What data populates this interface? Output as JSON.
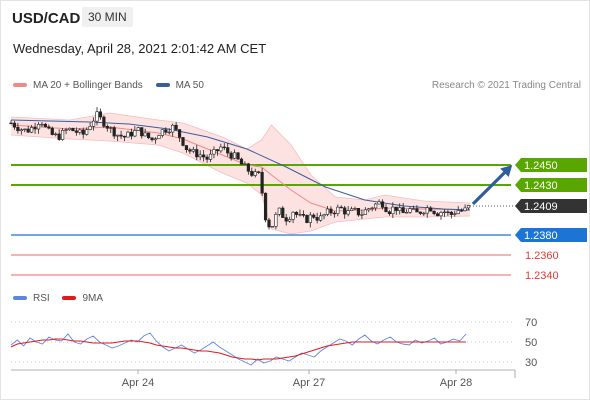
{
  "header": {
    "symbol": "USD/CAD",
    "timeframe": "30 MIN",
    "datetime": "Wednesday, April 28, 2021 2:01:42 AM CET"
  },
  "legend": {
    "ma_bollinger": "MA 20 + Bollinger Bands",
    "ma50": "MA 50",
    "rsi": "RSI",
    "ma9": "9MA"
  },
  "copyright": "Research © 2021 Trading Central",
  "colors": {
    "resistance": "#5aa600",
    "current": "#333333",
    "pivot": "#1c74d4",
    "support": "#e53935",
    "ma20": "#f08a8a",
    "ma50": "#3a5e9c",
    "bollinger_fill": "#fde2e2",
    "rsi": "#5b86e5",
    "ma9": "#e31a1c",
    "arrow": "#2e5d9e",
    "candle_up": "#ffffff",
    "candle_down": "#222222"
  },
  "icons": {
    "direction": "arrow-up-right-icon"
  },
  "chart_data": {
    "type": "candlestick",
    "instrument": "USD/CAD",
    "timeframe": "30 MIN",
    "ylim": [
      1.2325,
      1.2525
    ],
    "x_labels": [
      "Apr 24",
      "Apr 27",
      "Apr 28"
    ],
    "levels": [
      {
        "label": "1.2450",
        "value": 1.245,
        "kind": "resistance"
      },
      {
        "label": "1.2430",
        "value": 1.243,
        "kind": "resistance"
      },
      {
        "label": "1.2409",
        "value": 1.2409,
        "kind": "current"
      },
      {
        "label": "1.2380",
        "value": 1.238,
        "kind": "pivot"
      },
      {
        "label": "1.2360",
        "value": 1.236,
        "kind": "support"
      },
      {
        "label": "1.2340",
        "value": 1.234,
        "kind": "support"
      }
    ],
    "price_path": [
      [
        0,
        1.2492
      ],
      [
        8,
        1.2487
      ],
      [
        16,
        1.2484
      ],
      [
        24,
        1.2489
      ],
      [
        30,
        1.2496
      ],
      [
        36,
        1.2485
      ],
      [
        42,
        1.248
      ],
      [
        48,
        1.2478
      ],
      [
        53,
        1.2482
      ],
      [
        58,
        1.2486
      ],
      [
        65,
        1.2484
      ],
      [
        73,
        1.248
      ],
      [
        80,
        1.249
      ],
      [
        87,
        1.25
      ],
      [
        95,
        1.2492
      ],
      [
        102,
        1.2485
      ],
      [
        109,
        1.248
      ],
      [
        116,
        1.2478
      ],
      [
        123,
        1.2482
      ],
      [
        130,
        1.2485
      ],
      [
        137,
        1.2479
      ],
      [
        144,
        1.2475
      ],
      [
        151,
        1.2483
      ],
      [
        158,
        1.2486
      ],
      [
        165,
        1.2488
      ],
      [
        172,
        1.2478
      ],
      [
        179,
        1.2466
      ],
      [
        186,
        1.2462
      ],
      [
        193,
        1.246
      ],
      [
        200,
        1.2456
      ],
      [
        207,
        1.2462
      ],
      [
        214,
        1.2468
      ],
      [
        221,
        1.2462
      ],
      [
        228,
        1.2458
      ],
      [
        235,
        1.245
      ],
      [
        241,
        1.2445
      ],
      [
        247,
        1.244
      ],
      [
        252,
        1.244
      ],
      [
        256,
        1.242
      ],
      [
        258,
        1.24
      ],
      [
        261,
        1.2395
      ],
      [
        264,
        1.2385
      ],
      [
        268,
        1.2395
      ],
      [
        272,
        1.2405
      ],
      [
        276,
        1.24
      ],
      [
        281,
        1.2396
      ],
      [
        287,
        1.2404
      ],
      [
        293,
        1.2398
      ],
      [
        300,
        1.2395
      ],
      [
        307,
        1.24
      ],
      [
        314,
        1.2396
      ],
      [
        321,
        1.2402
      ],
      [
        328,
        1.2404
      ],
      [
        335,
        1.2407
      ],
      [
        342,
        1.2402
      ],
      [
        349,
        1.2404
      ],
      [
        356,
        1.2401
      ],
      [
        363,
        1.2406
      ],
      [
        370,
        1.241
      ],
      [
        377,
        1.2413
      ],
      [
        384,
        1.2404
      ],
      [
        391,
        1.2408
      ],
      [
        398,
        1.2401
      ],
      [
        405,
        1.2406
      ],
      [
        412,
        1.2401
      ],
      [
        419,
        1.2405
      ],
      [
        426,
        1.2408
      ],
      [
        433,
        1.2402
      ],
      [
        440,
        1.2404
      ],
      [
        447,
        1.24
      ],
      [
        454,
        1.2405
      ],
      [
        461,
        1.2404
      ],
      [
        467,
        1.2409
      ]
    ],
    "ma50_path": [
      [
        0,
        1.2495
      ],
      [
        40,
        1.2494
      ],
      [
        80,
        1.2493
      ],
      [
        120,
        1.2491
      ],
      [
        160,
        1.2486
      ],
      [
        200,
        1.2478
      ],
      [
        240,
        1.2466
      ],
      [
        280,
        1.2448
      ],
      [
        320,
        1.2428
      ],
      [
        360,
        1.2415
      ],
      [
        400,
        1.2409
      ],
      [
        440,
        1.2406
      ],
      [
        467,
        1.2405
      ]
    ],
    "bollinger_upper": [
      [
        0,
        1.2498
      ],
      [
        60,
        1.2495
      ],
      [
        100,
        1.2502
      ],
      [
        150,
        1.2495
      ],
      [
        175,
        1.2492
      ],
      [
        215,
        1.2478
      ],
      [
        240,
        1.2466
      ],
      [
        255,
        1.2475
      ],
      [
        265,
        1.249
      ],
      [
        285,
        1.247
      ],
      [
        305,
        1.244
      ],
      [
        330,
        1.2418
      ],
      [
        360,
        1.2415
      ],
      [
        380,
        1.242
      ],
      [
        420,
        1.2414
      ],
      [
        467,
        1.2412
      ]
    ],
    "bollinger_lower": [
      [
        0,
        1.248
      ],
      [
        60,
        1.2476
      ],
      [
        100,
        1.2474
      ],
      [
        150,
        1.247
      ],
      [
        175,
        1.2462
      ],
      [
        215,
        1.2442
      ],
      [
        240,
        1.2432
      ],
      [
        255,
        1.242
      ],
      [
        265,
        1.2386
      ],
      [
        285,
        1.2381
      ],
      [
        305,
        1.2384
      ],
      [
        330,
        1.2393
      ],
      [
        360,
        1.2396
      ],
      [
        380,
        1.2398
      ],
      [
        420,
        1.2398
      ],
      [
        467,
        1.2399
      ]
    ],
    "ma20_path": [
      [
        0,
        1.249
      ],
      [
        60,
        1.2486
      ],
      [
        100,
        1.2488
      ],
      [
        150,
        1.2482
      ],
      [
        175,
        1.2476
      ],
      [
        215,
        1.246
      ],
      [
        240,
        1.245
      ],
      [
        255,
        1.2448
      ],
      [
        265,
        1.244
      ],
      [
        285,
        1.2425
      ],
      [
        305,
        1.2412
      ],
      [
        330,
        1.2404
      ],
      [
        360,
        1.2405
      ],
      [
        380,
        1.2407
      ],
      [
        420,
        1.2406
      ],
      [
        467,
        1.2405
      ]
    ],
    "projection": {
      "from": [
        470,
        1.2411
      ],
      "to": [
        510,
        1.245
      ]
    },
    "rsi": {
      "ylim": [
        20,
        80
      ],
      "ticks": [
        70,
        50,
        30
      ],
      "values": [
        47,
        52,
        46,
        54,
        50,
        48,
        55,
        52,
        51,
        58,
        50,
        48,
        53,
        56,
        50,
        47,
        44,
        46,
        49,
        52,
        50,
        56,
        59,
        51,
        45,
        41,
        44,
        47,
        43,
        39,
        42,
        46,
        50,
        45,
        41,
        37,
        33,
        30,
        27,
        33,
        29,
        31,
        35,
        33,
        31,
        35,
        39,
        37,
        35,
        41,
        45,
        49,
        53,
        51,
        47,
        53,
        57,
        51,
        48,
        52,
        55,
        50,
        48,
        47,
        52,
        49,
        51,
        54,
        48,
        50,
        53,
        51,
        58
      ],
      "ma9": [
        45,
        48,
        49,
        50,
        51,
        52,
        52,
        53,
        53,
        52,
        51,
        51,
        50,
        49,
        49,
        49,
        49,
        50,
        51,
        51,
        51,
        50,
        49,
        47,
        46,
        45,
        44,
        44,
        43,
        42,
        41,
        41,
        40,
        39,
        37,
        35,
        34,
        33,
        33,
        32,
        33,
        33,
        33,
        34,
        35,
        36,
        38,
        40,
        42,
        44,
        46,
        47,
        48,
        49,
        50,
        50,
        50,
        50,
        50,
        50,
        50,
        50,
        50,
        50,
        50,
        50,
        50,
        50,
        50,
        50,
        50,
        50,
        50
      ]
    }
  }
}
